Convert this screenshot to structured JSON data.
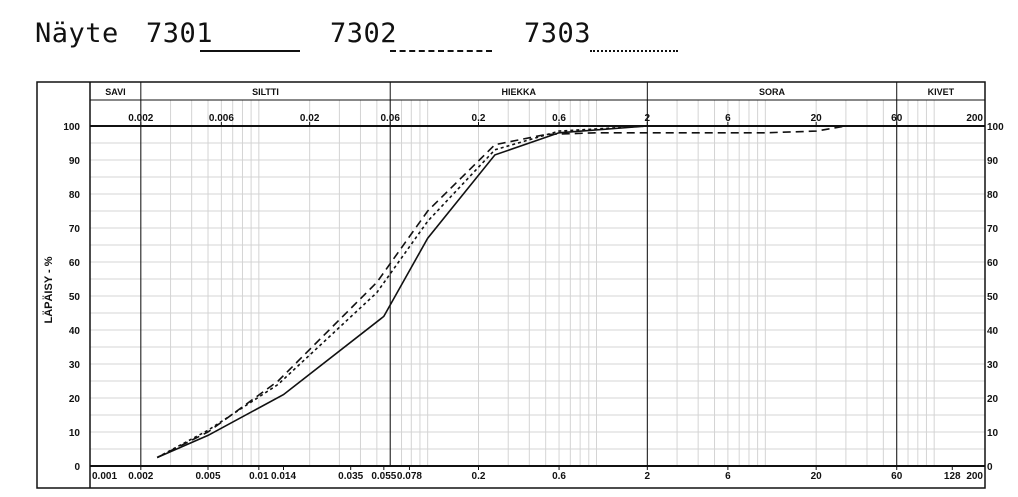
{
  "header": {
    "prefix": "Näyte",
    "samples": [
      "7301",
      "7302",
      "7303"
    ]
  },
  "chart_data": {
    "type": "line",
    "ylabel": "LÄPÄISY - %",
    "x_scale": "log",
    "xlim": [
      0.001,
      200
    ],
    "ylim": [
      0,
      100
    ],
    "grid": true,
    "legend": "top",
    "fractions": [
      {
        "name": "SAVI",
        "from": 0.001,
        "to": 0.002
      },
      {
        "name": "SILTTI",
        "from": 0.002,
        "to": 0.06
      },
      {
        "name": "HIEKKA",
        "from": 0.06,
        "to": 2
      },
      {
        "name": "SORA",
        "from": 2,
        "to": 60
      },
      {
        "name": "KIVET",
        "from": 60,
        "to": 200
      }
    ],
    "top_ticks": [
      "0.002",
      "0.006",
      "0.02",
      "0.06",
      "0.2",
      "0.6",
      "2",
      "6",
      "20",
      "60",
      "200"
    ],
    "bottom_ticks": [
      "0.001",
      "0.002",
      "0.005",
      "0.01",
      "0.014",
      "0.035",
      "0.055",
      "0.078",
      "0.2",
      "0.6",
      "2",
      "6",
      "20",
      "60",
      "128",
      "200"
    ],
    "y_ticks": [
      "0",
      "10",
      "20",
      "30",
      "40",
      "50",
      "60",
      "70",
      "80",
      "90",
      "100"
    ],
    "series": [
      {
        "name": "7301",
        "style": "solid",
        "points": [
          [
            0.0025,
            2.5
          ],
          [
            0.005,
            9
          ],
          [
            0.014,
            21
          ],
          [
            0.055,
            44
          ],
          [
            0.1,
            67
          ],
          [
            0.25,
            91.5
          ],
          [
            0.6,
            98
          ],
          [
            2,
            100
          ],
          [
            200,
            100
          ]
        ]
      },
      {
        "name": "7302",
        "style": "dashed",
        "points": [
          [
            0.0025,
            2.5
          ],
          [
            0.005,
            10
          ],
          [
            0.013,
            25
          ],
          [
            0.05,
            54
          ],
          [
            0.1,
            75
          ],
          [
            0.25,
            94.5
          ],
          [
            0.5,
            97.5
          ],
          [
            1,
            98
          ],
          [
            10,
            98
          ],
          [
            20,
            98.5
          ],
          [
            30,
            100
          ],
          [
            200,
            100
          ]
        ]
      },
      {
        "name": "7303",
        "style": "dotted",
        "points": [
          [
            0.0025,
            2.5
          ],
          [
            0.005,
            10.5
          ],
          [
            0.013,
            24
          ],
          [
            0.05,
            51
          ],
          [
            0.1,
            72
          ],
          [
            0.25,
            93
          ],
          [
            0.6,
            98.5
          ],
          [
            2,
            100
          ],
          [
            200,
            100
          ]
        ]
      }
    ]
  }
}
